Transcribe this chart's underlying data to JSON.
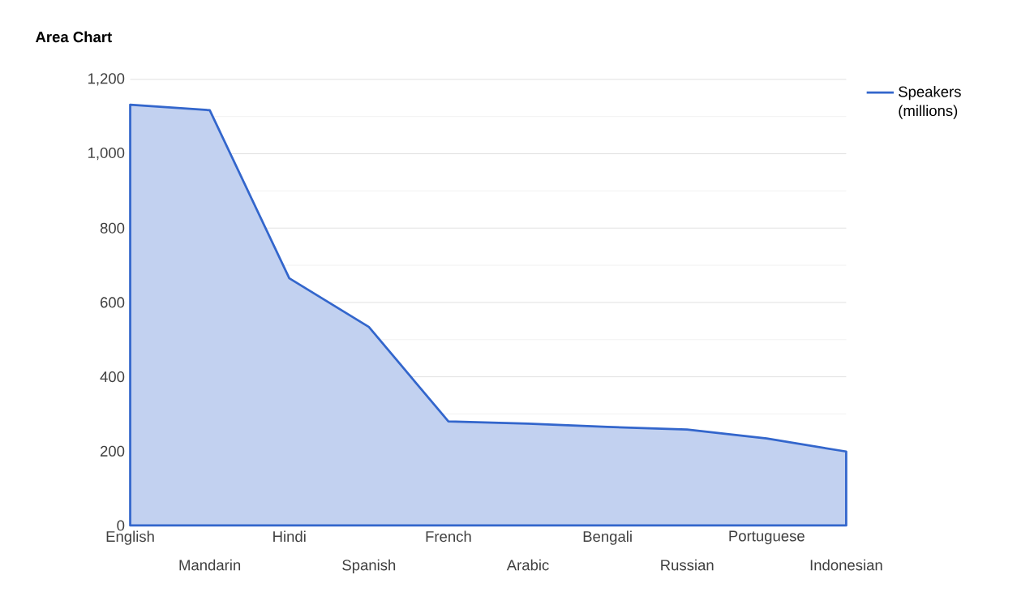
{
  "chart_data": {
    "type": "area",
    "title": "Area Chart",
    "categories": [
      "English",
      "Mandarin",
      "Hindi",
      "Spanish",
      "French",
      "Arabic",
      "Bengali",
      "Russian",
      "Portuguese",
      "Indonesian"
    ],
    "series": [
      {
        "name": "Speakers (millions)",
        "color": "#3366cc",
        "values": [
          1132,
          1117,
          665,
          534,
          280,
          274,
          265,
          258,
          234,
          199
        ]
      }
    ],
    "ylim": [
      0,
      1200
    ],
    "yticks": [
      0,
      200,
      400,
      600,
      800,
      {
        "value": 1000,
        "label": "1,000"
      },
      {
        "value": 1200,
        "label": "1,200"
      }
    ],
    "grid": true,
    "legend": "right"
  }
}
